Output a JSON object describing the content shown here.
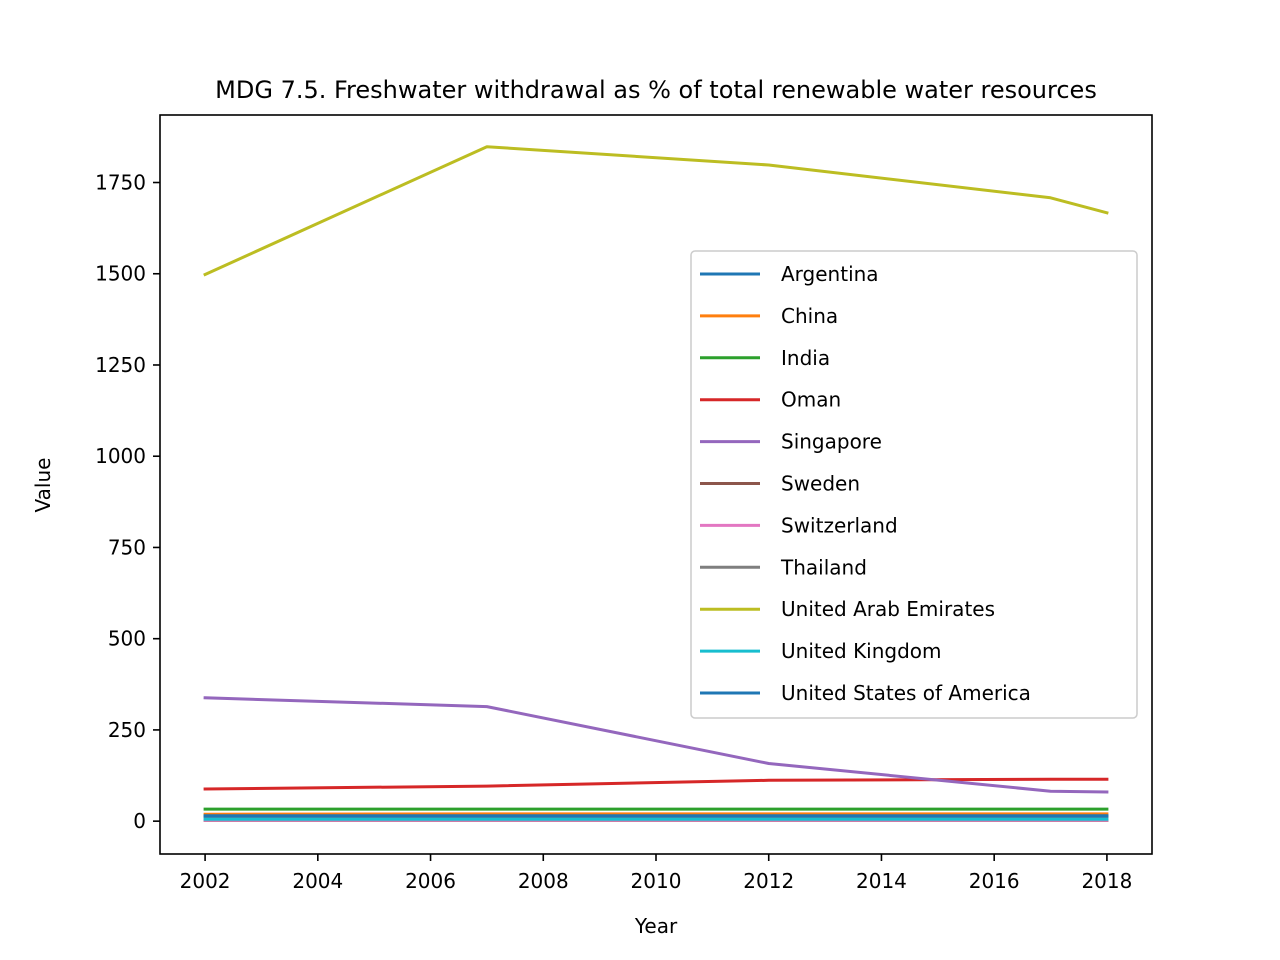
{
  "chart_data": {
    "type": "line",
    "title": "MDG 7.5. Freshwater withdrawal as % of total renewable water resources",
    "xlabel": "Year",
    "ylabel": "Value",
    "xlim": [
      2001.2,
      2018.8
    ],
    "ylim": [
      -90,
      1935
    ],
    "xticks": [
      2002,
      2004,
      2006,
      2008,
      2010,
      2012,
      2014,
      2016,
      2018
    ],
    "yticks": [
      0,
      250,
      500,
      750,
      1000,
      1250,
      1500,
      1750
    ],
    "x": [
      2002,
      2007,
      2012,
      2017,
      2018
    ],
    "legend_position": "center-right",
    "grid": false,
    "series": [
      {
        "name": "Argentina",
        "color": "#1f77b4",
        "values": [
          12,
          12,
          12,
          12,
          12
        ]
      },
      {
        "name": "China",
        "color": "#ff7f0e",
        "values": [
          19,
          20,
          20,
          20,
          20
        ]
      },
      {
        "name": "India",
        "color": "#2ca02c",
        "values": [
          33,
          33,
          33,
          33,
          33
        ]
      },
      {
        "name": "Oman",
        "color": "#d62728",
        "values": [
          88,
          96,
          112,
          115,
          115
        ]
      },
      {
        "name": "Singapore",
        "color": "#9467bd",
        "values": [
          338,
          314,
          158,
          82,
          80
        ]
      },
      {
        "name": "Sweden",
        "color": "#8c564b",
        "values": [
          2,
          2,
          2,
          2,
          2
        ]
      },
      {
        "name": "Switzerland",
        "color": "#e377c2",
        "values": [
          3,
          3,
          3,
          3,
          3
        ]
      },
      {
        "name": "Thailand",
        "color": "#7f7f7f",
        "values": [
          14,
          14,
          14,
          14,
          14
        ]
      },
      {
        "name": "United Arab Emirates",
        "color": "#bcbd22",
        "values": [
          1498,
          1848,
          1798,
          1708,
          1667
        ]
      },
      {
        "name": "United Kingdom",
        "color": "#17becf",
        "values": [
          5,
          5,
          5,
          5,
          5
        ]
      },
      {
        "name": "United States of America",
        "color": "#1f77b4",
        "values": [
          15,
          15,
          15,
          15,
          15
        ]
      }
    ]
  }
}
